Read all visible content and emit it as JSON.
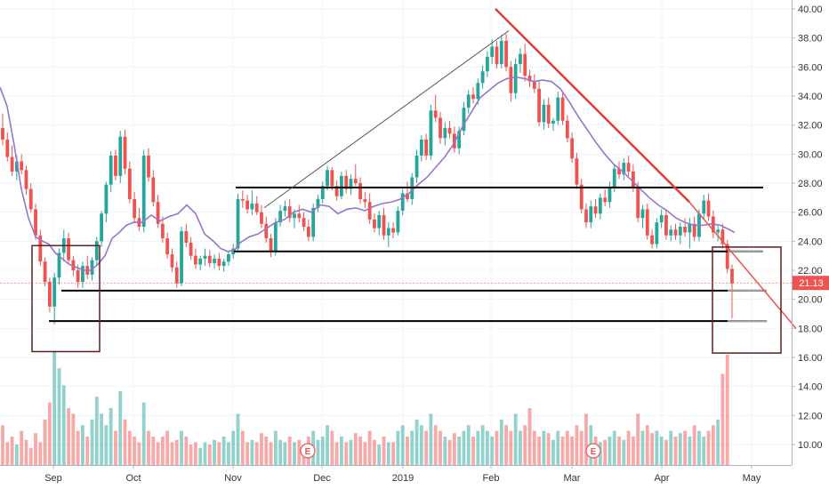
{
  "chart_data": {
    "type": "candlestick",
    "title": "",
    "xlabel": "",
    "ylabel": "",
    "ylim": [
      8.7,
      40.6
    ],
    "y_ticks": [
      "10.00",
      "12.00",
      "14.00",
      "16.00",
      "18.00",
      "20.00",
      "22.00",
      "24.00",
      "26.00",
      "28.00",
      "30.00",
      "32.00",
      "34.00",
      "36.00",
      "38.00",
      "40.00"
    ],
    "x_ticks": [
      "Sep",
      "Oct",
      "Nov",
      "Dec",
      "2019",
      "Feb",
      "Mar",
      "Apr",
      "May"
    ],
    "last_price": "21.13",
    "earnings_markers": [
      "E",
      "E"
    ],
    "grid": true,
    "up_color": "#26a69a",
    "down_color": "#ef5350",
    "ma_color": "#9575cd",
    "candles_ohlc": [
      [
        31.8,
        32.8,
        30.6,
        31.0
      ],
      [
        31.0,
        31.5,
        29.5,
        29.8
      ],
      [
        29.8,
        30.6,
        28.5,
        28.8
      ],
      [
        28.8,
        29.9,
        28.2,
        29.5
      ],
      [
        29.5,
        30.0,
        28.6,
        28.9
      ],
      [
        28.9,
        29.2,
        27.2,
        27.6
      ],
      [
        27.6,
        28.0,
        26.0,
        26.2
      ],
      [
        26.2,
        26.6,
        24.1,
        24.4
      ],
      [
        24.4,
        24.8,
        22.3,
        22.6
      ],
      [
        22.6,
        22.9,
        20.9,
        21.2
      ],
      [
        21.2,
        21.5,
        19.1,
        19.5
      ],
      [
        19.5,
        21.8,
        18.3,
        21.5
      ],
      [
        21.5,
        23.5,
        21.0,
        23.2
      ],
      [
        23.2,
        24.8,
        22.6,
        24.2
      ],
      [
        24.2,
        24.6,
        22.4,
        22.7
      ],
      [
        22.7,
        23.0,
        21.6,
        22.0
      ],
      [
        22.0,
        22.4,
        20.8,
        21.2
      ],
      [
        21.2,
        22.6,
        20.8,
        22.3
      ],
      [
        22.3,
        23.0,
        21.4,
        21.7
      ],
      [
        21.7,
        22.9,
        21.3,
        22.7
      ],
      [
        22.7,
        24.3,
        22.3,
        24.0
      ],
      [
        24.0,
        26.1,
        23.6,
        25.9
      ],
      [
        25.9,
        28.1,
        25.3,
        27.9
      ],
      [
        27.9,
        30.2,
        27.4,
        29.9
      ],
      [
        29.9,
        30.3,
        28.2,
        28.5
      ],
      [
        28.5,
        31.6,
        28.0,
        31.2
      ],
      [
        31.2,
        31.7,
        28.6,
        29.0
      ],
      [
        29.0,
        29.5,
        26.6,
        26.9
      ],
      [
        26.9,
        27.4,
        25.3,
        25.6
      ],
      [
        25.6,
        26.3,
        24.7,
        25.0
      ],
      [
        25.0,
        30.3,
        24.6,
        29.9
      ],
      [
        29.9,
        30.4,
        28.1,
        28.4
      ],
      [
        28.4,
        28.9,
        26.4,
        26.7
      ],
      [
        26.7,
        27.2,
        24.9,
        25.2
      ],
      [
        25.2,
        25.7,
        23.9,
        24.2
      ],
      [
        24.2,
        24.6,
        22.8,
        23.1
      ],
      [
        23.1,
        23.5,
        21.9,
        22.2
      ],
      [
        22.2,
        22.6,
        20.8,
        21.1
      ],
      [
        21.1,
        25.0,
        20.9,
        24.7
      ],
      [
        24.7,
        25.2,
        23.6,
        23.9
      ],
      [
        23.9,
        24.3,
        22.7,
        23.0
      ],
      [
        23.0,
        23.5,
        22.1,
        22.4
      ],
      [
        22.4,
        23.0,
        22.0,
        22.8
      ],
      [
        22.8,
        23.5,
        22.3,
        23.0
      ],
      [
        23.0,
        23.4,
        22.2,
        22.5
      ],
      [
        22.5,
        23.1,
        22.1,
        22.8
      ],
      [
        22.8,
        23.2,
        22.0,
        22.3
      ],
      [
        22.3,
        22.8,
        21.9,
        22.6
      ],
      [
        22.6,
        23.3,
        22.3,
        23.1
      ],
      [
        23.1,
        23.8,
        22.8,
        23.5
      ],
      [
        23.5,
        27.3,
        23.2,
        26.9
      ],
      [
        26.9,
        27.5,
        26.3,
        26.8
      ],
      [
        26.8,
        27.2,
        25.9,
        26.2
      ],
      [
        26.2,
        27.5,
        25.8,
        26.6
      ],
      [
        26.6,
        27.1,
        25.8,
        26.0
      ],
      [
        26.0,
        26.5,
        24.9,
        25.2
      ],
      [
        25.2,
        25.7,
        23.9,
        24.2
      ],
      [
        24.2,
        24.5,
        22.9,
        23.3
      ],
      [
        23.3,
        25.6,
        23.0,
        25.3
      ],
      [
        25.3,
        26.5,
        25.0,
        26.1
      ],
      [
        26.1,
        26.8,
        25.7,
        26.4
      ],
      [
        26.4,
        26.9,
        25.3,
        25.6
      ],
      [
        25.6,
        26.2,
        24.9,
        25.9
      ],
      [
        25.9,
        26.5,
        25.3,
        25.6
      ],
      [
        25.6,
        26.0,
        24.7,
        25.0
      ],
      [
        25.0,
        25.5,
        24.0,
        24.3
      ],
      [
        24.3,
        26.6,
        24.0,
        26.3
      ],
      [
        26.3,
        27.2,
        26.0,
        26.9
      ],
      [
        26.9,
        28.1,
        26.6,
        27.8
      ],
      [
        27.8,
        29.2,
        27.5,
        28.9
      ],
      [
        28.9,
        29.1,
        27.5,
        27.8
      ],
      [
        27.8,
        28.2,
        26.8,
        27.1
      ],
      [
        27.1,
        28.8,
        26.9,
        28.5
      ],
      [
        28.5,
        28.9,
        27.3,
        27.6
      ],
      [
        27.6,
        28.6,
        27.2,
        28.3
      ],
      [
        28.3,
        29.3,
        27.8,
        28.0
      ],
      [
        28.0,
        28.4,
        26.6,
        26.9
      ],
      [
        26.9,
        27.4,
        26.3,
        26.7
      ],
      [
        26.7,
        27.3,
        25.2,
        25.5
      ],
      [
        25.5,
        25.9,
        24.6,
        24.9
      ],
      [
        24.9,
        26.1,
        24.4,
        25.8
      ],
      [
        25.8,
        26.3,
        24.1,
        24.4
      ],
      [
        24.4,
        25.3,
        23.6,
        24.9
      ],
      [
        24.9,
        25.3,
        24.2,
        24.6
      ],
      [
        24.6,
        26.4,
        24.4,
        26.1
      ],
      [
        26.1,
        27.6,
        25.8,
        27.3
      ],
      [
        27.3,
        28.1,
        26.7,
        26.9
      ],
      [
        26.9,
        28.7,
        26.5,
        28.4
      ],
      [
        28.4,
        30.3,
        28.0,
        29.9
      ],
      [
        29.9,
        31.3,
        29.5,
        31.0
      ],
      [
        31.0,
        31.4,
        29.6,
        29.9
      ],
      [
        29.9,
        33.4,
        29.6,
        33.0
      ],
      [
        33.0,
        34.1,
        32.2,
        32.5
      ],
      [
        32.5,
        32.9,
        30.7,
        31.1
      ],
      [
        31.1,
        32.2,
        30.6,
        31.8
      ],
      [
        31.8,
        32.3,
        31.1,
        31.4
      ],
      [
        31.4,
        31.9,
        30.1,
        30.4
      ],
      [
        30.4,
        31.9,
        30.0,
        31.6
      ],
      [
        31.6,
        33.6,
        31.3,
        33.2
      ],
      [
        33.2,
        34.4,
        32.8,
        34.1
      ],
      [
        34.1,
        34.6,
        33.5,
        33.8
      ],
      [
        33.8,
        35.2,
        33.4,
        34.9
      ],
      [
        34.9,
        36.1,
        34.5,
        35.7
      ],
      [
        35.7,
        37.1,
        35.3,
        36.7
      ],
      [
        36.7,
        37.9,
        36.2,
        37.4
      ],
      [
        37.4,
        37.8,
        35.9,
        36.2
      ],
      [
        36.2,
        38.2,
        35.9,
        37.8
      ],
      [
        37.8,
        38.3,
        35.7,
        36.0
      ],
      [
        36.0,
        36.4,
        33.6,
        34.2
      ],
      [
        34.2,
        36.6,
        33.8,
        36.2
      ],
      [
        36.2,
        37.3,
        35.6,
        36.9
      ],
      [
        36.9,
        37.6,
        35.0,
        35.4
      ],
      [
        35.4,
        35.8,
        34.6,
        35.0
      ],
      [
        35.0,
        35.5,
        34.2,
        34.5
      ],
      [
        34.5,
        35.0,
        31.9,
        32.2
      ],
      [
        32.2,
        33.8,
        31.7,
        33.4
      ],
      [
        33.4,
        33.9,
        31.8,
        32.1
      ],
      [
        32.1,
        32.5,
        31.6,
        32.3
      ],
      [
        32.3,
        34.3,
        32.0,
        33.9
      ],
      [
        33.9,
        34.2,
        32.0,
        32.3
      ],
      [
        32.3,
        32.7,
        30.8,
        31.1
      ],
      [
        31.1,
        31.5,
        29.4,
        29.7
      ],
      [
        29.7,
        30.1,
        27.6,
        27.9
      ],
      [
        27.9,
        28.3,
        25.9,
        26.2
      ],
      [
        26.2,
        26.6,
        24.9,
        25.3
      ],
      [
        25.3,
        26.8,
        24.9,
        26.4
      ],
      [
        26.4,
        26.9,
        25.6,
        25.9
      ],
      [
        25.9,
        27.3,
        25.5,
        27.0
      ],
      [
        27.0,
        27.6,
        26.4,
        26.7
      ],
      [
        26.7,
        28.1,
        26.3,
        27.7
      ],
      [
        27.7,
        29.3,
        27.4,
        29.0
      ],
      [
        29.0,
        29.5,
        28.3,
        28.6
      ],
      [
        28.6,
        29.7,
        28.2,
        29.4
      ],
      [
        29.4,
        29.9,
        28.5,
        28.8
      ],
      [
        28.8,
        29.3,
        27.4,
        27.7
      ],
      [
        27.7,
        28.1,
        25.3,
        25.6
      ],
      [
        25.6,
        26.5,
        24.9,
        26.2
      ],
      [
        26.2,
        26.6,
        24.1,
        24.4
      ],
      [
        24.4,
        24.8,
        23.5,
        23.8
      ],
      [
        23.8,
        25.6,
        23.5,
        25.3
      ],
      [
        25.3,
        26.2,
        24.9,
        25.8
      ],
      [
        25.8,
        26.2,
        24.1,
        24.4
      ],
      [
        24.4,
        25.1,
        24.0,
        24.8
      ],
      [
        24.8,
        25.2,
        24.1,
        24.4
      ],
      [
        24.4,
        25.3,
        23.8,
        25.0
      ],
      [
        25.0,
        25.6,
        24.3,
        24.6
      ],
      [
        24.6,
        25.6,
        23.5,
        25.2
      ],
      [
        25.2,
        25.7,
        24.0,
        24.3
      ],
      [
        24.3,
        26.2,
        24.0,
        25.9
      ],
      [
        25.9,
        27.2,
        25.5,
        26.8
      ],
      [
        26.8,
        27.3,
        25.4,
        25.7
      ],
      [
        25.7,
        26.1,
        24.2,
        24.6
      ],
      [
        24.6,
        25.1,
        24.0,
        24.8
      ],
      [
        24.8,
        25.2,
        23.5,
        23.8
      ],
      [
        23.8,
        24.1,
        21.8,
        22.1
      ],
      [
        22.1,
        22.4,
        18.7,
        21.1
      ]
    ],
    "volume_relative": [
      0.35,
      0.2,
      0.25,
      0.18,
      0.3,
      0.22,
      0.15,
      0.28,
      0.2,
      0.4,
      0.55,
      1.0,
      0.85,
      0.7,
      0.5,
      0.45,
      0.3,
      0.35,
      0.25,
      0.4,
      0.6,
      0.45,
      0.35,
      0.5,
      0.3,
      0.65,
      0.4,
      0.3,
      0.25,
      0.2,
      0.55,
      0.3,
      0.25,
      0.2,
      0.25,
      0.3,
      0.2,
      0.22,
      0.3,
      0.25,
      0.18,
      0.2,
      0.15,
      0.2,
      0.18,
      0.22,
      0.2,
      0.25,
      0.2,
      0.3,
      0.45,
      0.3,
      0.2,
      0.22,
      0.2,
      0.28,
      0.25,
      0.2,
      0.3,
      0.22,
      0.2,
      0.25,
      0.2,
      0.22,
      0.18,
      0.25,
      0.3,
      0.22,
      0.25,
      0.35,
      0.3,
      0.2,
      0.25,
      0.2,
      0.22,
      0.28,
      0.25,
      0.2,
      0.3,
      0.22,
      0.18,
      0.25,
      0.2,
      0.2,
      0.3,
      0.35,
      0.25,
      0.3,
      0.4,
      0.35,
      0.3,
      0.45,
      0.35,
      0.3,
      0.25,
      0.22,
      0.28,
      0.25,
      0.3,
      0.35,
      0.25,
      0.3,
      0.35,
      0.3,
      0.25,
      0.3,
      0.4,
      0.35,
      0.3,
      0.45,
      0.3,
      0.35,
      0.5,
      0.3,
      0.25,
      0.3,
      0.28,
      0.22,
      0.3,
      0.25,
      0.3,
      0.25,
      0.35,
      0.3,
      0.45,
      0.35,
      0.25,
      0.2,
      0.22,
      0.25,
      0.3,
      0.25,
      0.22,
      0.3,
      0.25,
      0.45,
      0.3,
      0.35,
      0.28,
      0.3,
      0.25,
      0.22,
      0.3,
      0.25,
      0.28,
      0.3,
      0.25,
      0.35,
      0.3,
      0.25,
      0.3,
      0.35,
      0.4,
      0.8,
      0.97
    ],
    "moving_average": [
      [
        0,
        34.6
      ],
      [
        8,
        33.3
      ],
      [
        16,
        30.6
      ],
      [
        24,
        27.6
      ],
      [
        32,
        25.6
      ],
      [
        40,
        24.3
      ],
      [
        48,
        24.0
      ],
      [
        55,
        23.8
      ],
      [
        62,
        23.2
      ],
      [
        70,
        22.8
      ],
      [
        78,
        22.4
      ],
      [
        86,
        22.2
      ],
      [
        94,
        22.0
      ],
      [
        102,
        22.0
      ],
      [
        110,
        22.4
      ],
      [
        118,
        23.0
      ],
      [
        126,
        24.2
      ],
      [
        134,
        24.6
      ],
      [
        142,
        25.1
      ],
      [
        150,
        25.3
      ],
      [
        160,
        25.3
      ],
      [
        170,
        25.8
      ],
      [
        180,
        25.4
      ],
      [
        190,
        25.7
      ],
      [
        200,
        25.9
      ],
      [
        210,
        26.5
      ],
      [
        220,
        25.9
      ],
      [
        230,
        24.5
      ],
      [
        240,
        24.0
      ],
      [
        248,
        23.5
      ],
      [
        256,
        23.3
      ],
      [
        264,
        23.4
      ],
      [
        270,
        23.9
      ],
      [
        280,
        24.3
      ],
      [
        290,
        24.5
      ],
      [
        300,
        24.9
      ],
      [
        310,
        25.3
      ],
      [
        320,
        25.5
      ],
      [
        330,
        26.0
      ],
      [
        340,
        26.2
      ],
      [
        350,
        26.0
      ],
      [
        360,
        26.5
      ],
      [
        370,
        26.4
      ],
      [
        380,
        25.9
      ],
      [
        390,
        26.2
      ],
      [
        400,
        26.3
      ],
      [
        410,
        26.1
      ],
      [
        420,
        26.4
      ],
      [
        430,
        26.6
      ],
      [
        440,
        26.7
      ],
      [
        450,
        26.9
      ],
      [
        460,
        27.3
      ],
      [
        470,
        27.9
      ],
      [
        480,
        28.4
      ],
      [
        490,
        29.1
      ],
      [
        500,
        29.8
      ],
      [
        510,
        30.7
      ],
      [
        520,
        31.9
      ],
      [
        530,
        32.9
      ],
      [
        540,
        33.9
      ],
      [
        550,
        34.4
      ],
      [
        560,
        34.9
      ],
      [
        570,
        35.2
      ],
      [
        580,
        35.3
      ],
      [
        590,
        35.2
      ],
      [
        600,
        35.0
      ],
      [
        610,
        35.1
      ],
      [
        620,
        35.0
      ],
      [
        630,
        34.5
      ],
      [
        640,
        33.6
      ],
      [
        650,
        32.6
      ],
      [
        660,
        31.7
      ],
      [
        670,
        30.8
      ],
      [
        680,
        30.0
      ],
      [
        690,
        29.3
      ],
      [
        700,
        28.8
      ],
      [
        710,
        28.2
      ],
      [
        720,
        27.6
      ],
      [
        730,
        27.0
      ],
      [
        740,
        26.5
      ],
      [
        750,
        26.1
      ],
      [
        760,
        25.6
      ],
      [
        770,
        25.3
      ],
      [
        780,
        25.1
      ],
      [
        790,
        25.1
      ],
      [
        800,
        25.2
      ],
      [
        810,
        25.1
      ],
      [
        820,
        24.8
      ],
      [
        826,
        24.6
      ]
    ],
    "annotations": {
      "horizontal_levels": [
        27.7,
        23.3,
        20.6,
        18.5
      ],
      "uptrend_line": [
        [
          297,
          26.3
        ],
        [
          572,
          38.5
        ]
      ],
      "downtrend_line": [
        [
          557,
          40.0
        ],
        [
          895,
          18.0
        ]
      ],
      "boxes": [
        {
          "x1": 36,
          "x2": 112,
          "y_top": 23.7,
          "y_bottom": 16.4
        },
        {
          "x1": 801,
          "x2": 878,
          "y_top": 23.6,
          "y_bottom": 16.3
        }
      ]
    }
  }
}
